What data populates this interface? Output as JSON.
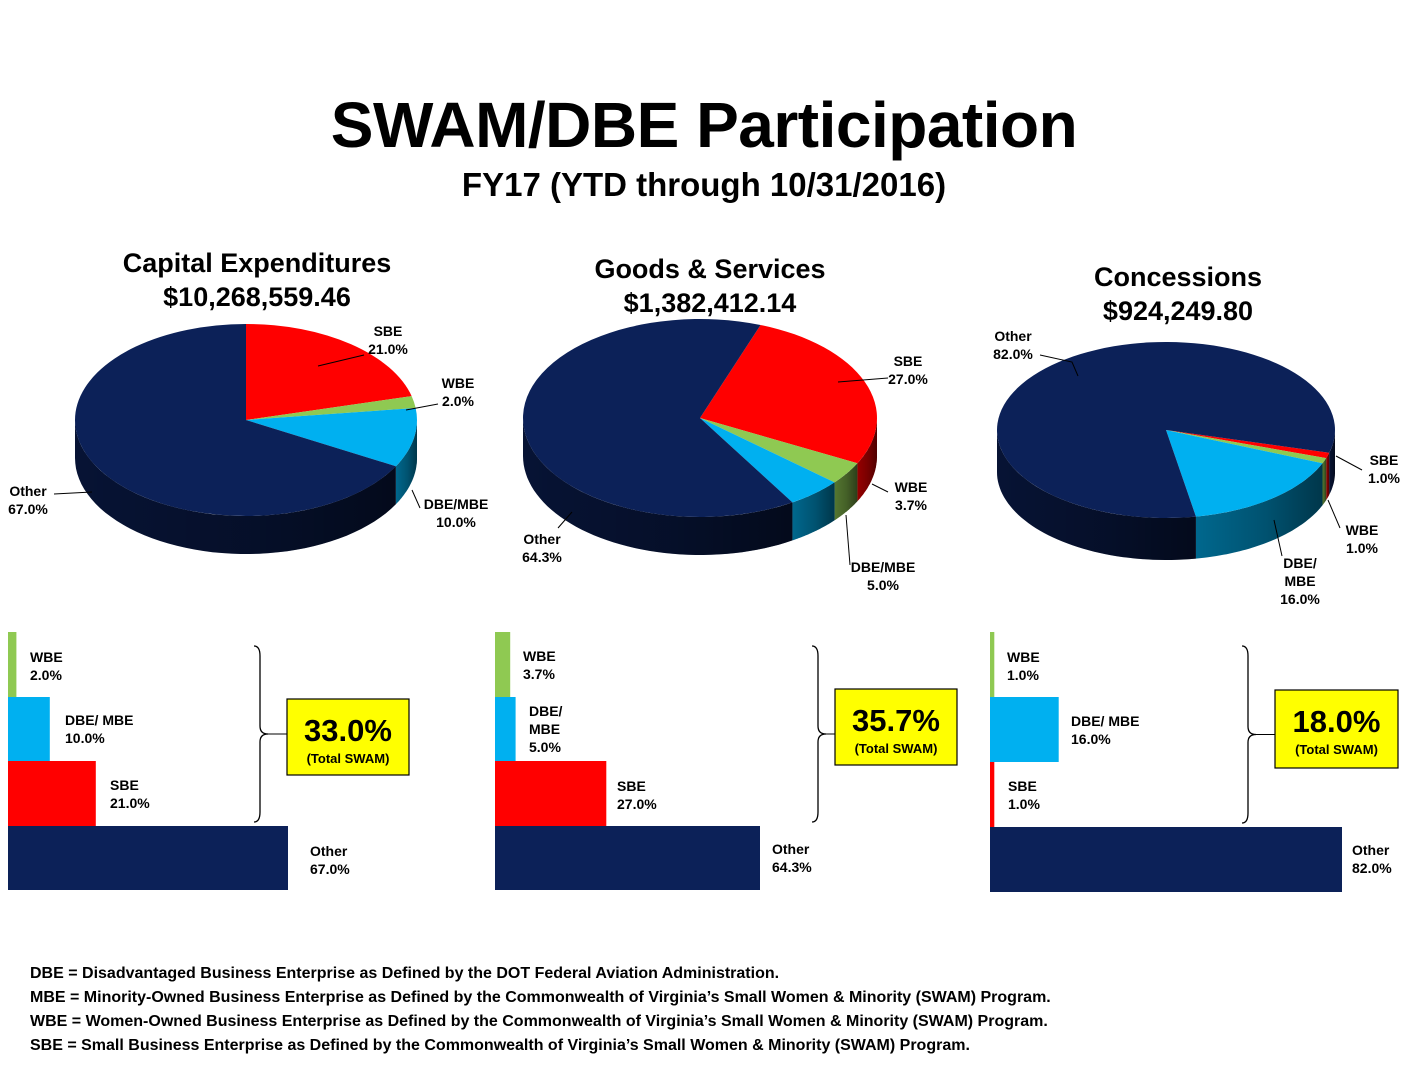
{
  "title": "SWAM/DBE Participation",
  "subtitle": "FY17 (YTD through 10/31/2016)",
  "colors": {
    "Other": "#0c2158",
    "SBE": "#ff0000",
    "WBE": "#8fc952",
    "DBE/MBE": "#00b0f0",
    "highlight": "#ffff00"
  },
  "chart_data": [
    {
      "type": "pie",
      "title": "Capital Expenditures",
      "subtitle": "$10,268,559.46",
      "categories": [
        "SBE",
        "WBE",
        "DBE/MBE",
        "Other"
      ],
      "values": [
        21.0,
        2.0,
        10.0,
        67.0
      ],
      "pie_labels": [
        "SBE\n21.0%",
        "WBE\n2.0%",
        "DBE/MBE\n10.0%",
        "Other\n67.0%"
      ]
    },
    {
      "type": "pie",
      "title": "Goods & Services",
      "subtitle": "$1,382,412.14",
      "categories": [
        "SBE",
        "WBE",
        "DBE/MBE",
        "Other"
      ],
      "values": [
        27.0,
        3.7,
        5.0,
        64.3
      ],
      "pie_labels": [
        "SBE\n27.0%",
        "WBE\n3.7%",
        "DBE/MBE\n5.0%",
        "Other\n64.3%"
      ]
    },
    {
      "type": "pie",
      "title": "Concessions",
      "subtitle": "$924,249.80",
      "categories": [
        "SBE",
        "WBE",
        "DBE/MBE",
        "Other"
      ],
      "values": [
        1.0,
        1.0,
        16.0,
        82.0
      ],
      "pie_labels": [
        "SBE\n1.0%",
        "WBE\n1.0%",
        "DBE/\nMBE\n16.0%",
        "Other\n82.0%"
      ]
    },
    {
      "type": "bar",
      "orientation": "horizontal",
      "categories": [
        "WBE",
        "DBE/ MBE",
        "SBE",
        "Other"
      ],
      "values": [
        2.0,
        10.0,
        21.0,
        67.0
      ],
      "bar_labels": [
        "WBE\n2.0%",
        "DBE/ MBE\n10.0%",
        "SBE\n21.0%",
        "Other\n67.0%"
      ],
      "total": "33.0%",
      "total_label": "(Total SWAM)"
    },
    {
      "type": "bar",
      "orientation": "horizontal",
      "categories": [
        "WBE",
        "DBE/ MBE",
        "SBE",
        "Other"
      ],
      "values": [
        3.7,
        5.0,
        27.0,
        64.3
      ],
      "bar_labels": [
        "WBE\n3.7%",
        "DBE/\nMBE\n5.0%",
        "SBE\n27.0%",
        "Other\n64.3%"
      ],
      "total": "35.7%",
      "total_label": "(Total SWAM)"
    },
    {
      "type": "bar",
      "orientation": "horizontal",
      "categories": [
        "WBE",
        "DBE/ MBE",
        "SBE",
        "Other"
      ],
      "values": [
        1.0,
        16.0,
        1.0,
        82.0
      ],
      "bar_labels": [
        "WBE\n1.0%",
        "DBE/ MBE\n16.0%",
        "SBE\n1.0%",
        "Other\n82.0%"
      ],
      "total": "18.0%",
      "total_label": "(Total SWAM)"
    }
  ],
  "footnotes": [
    "DBE = Disadvantaged Business Enterprise as Defined by the DOT Federal Aviation Administration.",
    "MBE = Minority-Owned Business Enterprise as Defined by the Commonwealth of Virginia’s Small Women & Minority (SWAM) Program.",
    "WBE = Women-Owned Business Enterprise as Defined by the Commonwealth of Virginia’s Small Women & Minority (SWAM) Program.",
    "SBE = Small Business Enterprise as Defined by the Commonwealth of Virginia’s Small Women & Minority (SWAM) Program."
  ]
}
